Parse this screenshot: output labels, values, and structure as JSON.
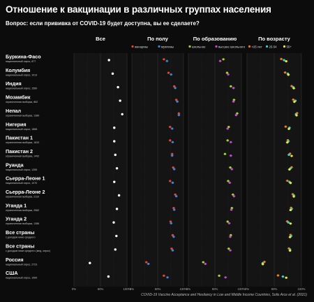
{
  "title": "Отношение к вакцинации в различных группах населения",
  "question": "Вопрос: если прививка от COVID-19 будет доступна, вы ее сделаете?",
  "source": "COVID-19 Vaccine Acceptance and Hesitancy in Low and Middle Income Countries, Solis Arce et al. (2021)",
  "colors": {
    "background": "#0c0c0c",
    "women": "#e8452c",
    "men": "#3a86d8",
    "school": "#9fd82a",
    "higher": "#c449cf",
    "age_lt25": "#f07a22",
    "age_25_54": "#3ad1cc",
    "age_55plus": "#ede93c",
    "all": "#ffffff"
  },
  "chart_data": {
    "type": "scatter",
    "panels": [
      {
        "title": "Все",
        "legend": []
      },
      {
        "title": "По полу",
        "legend": [
          {
            "label": "женщины",
            "color": "#e8452c"
          },
          {
            "label": "мужчины",
            "color": "#3a86d8"
          }
        ]
      },
      {
        "title": "По образованию",
        "legend": [
          {
            "label": "школьное",
            "color": "#9fd82a"
          },
          {
            "label": "высшее школьного",
            "color": "#c449cf"
          }
        ]
      },
      {
        "title": "По возрасту",
        "legend": [
          {
            "label": "<25 лет",
            "color": "#f07a22"
          },
          {
            "label": "25-54",
            "color": "#3ad1cc"
          },
          {
            "label": "55+",
            "color": "#ede93c"
          }
        ]
      }
    ],
    "x_axis": {
      "range": [
        0,
        100
      ],
      "ticks": [
        0,
        50,
        100
      ],
      "tick_labels": [
        "0%",
        "50%",
        "100%"
      ]
    },
    "rows": [
      {
        "name": "Буркина-Фасо",
        "subtitle": "национальный опрос, 877",
        "all": 66,
        "gender": [
          62,
          68
        ],
        "education": [
          66,
          60
        ],
        "age": [
          63,
          68,
          72
        ]
      },
      {
        "name": "Колумбия",
        "subtitle": "национальный опрос, 1013",
        "all": 73,
        "gender": [
          71,
          76
        ],
        "education": [
          73,
          75
        ],
        "age": [
          70,
          75,
          76
        ]
      },
      {
        "name": "Индия",
        "subtitle": "национальный опрос, 1580",
        "all": 83,
        "gender": [
          82,
          84
        ],
        "education": [
          80,
          85
        ],
        "age": [
          82,
          85,
          86
        ]
      },
      {
        "name": "Мозамбик",
        "subtitle": "ограниченная выборка, 862",
        "all": 87,
        "gender": [
          86,
          88
        ],
        "education": [
          86,
          85
        ],
        "age": [
          85,
          89,
          87
        ]
      },
      {
        "name": "Непал",
        "subtitle": "ограниченная выборка, 1389",
        "all": 91,
        "gender": [
          91,
          91
        ],
        "education": [
          92,
          90
        ],
        "age": [
          92,
          90,
          91
        ]
      },
      {
        "name": "Нигерия",
        "subtitle": "национальный опрос, 1868",
        "all": 76,
        "gender": [
          74,
          78
        ],
        "education": [
          76,
          74
        ],
        "age": [
          71,
          78,
          77
        ]
      },
      {
        "name": "Пакистан 1",
        "subtitle": "ограниченная выборка, 1633",
        "all": 76,
        "gender": [
          74,
          79
        ],
        "education": [
          74,
          80
        ],
        "age": [
          75,
          76,
          74
        ]
      },
      {
        "name": "Пакистан 2",
        "subtitle": "ограниченная выборка, 1492",
        "all": 78,
        "gender": [
          78,
          78
        ],
        "education": [
          69,
          80
        ],
        "age": [
          79,
          77,
          82
        ]
      },
      {
        "name": "Руанда",
        "subtitle": "национальный опрос, 1355",
        "all": 81,
        "gender": [
          80,
          82
        ],
        "education": [
          79,
          82
        ],
        "age": [
          82,
          80,
          78
        ]
      },
      {
        "name": "Сьерра-Леоне 1",
        "subtitle": "национальный опрос, 1070",
        "all": 76,
        "gender": [
          74,
          79
        ],
        "education": [
          75,
          78
        ],
        "age": [
          74,
          78,
          80
        ]
      },
      {
        "name": "Сьерра-Леоне 2",
        "subtitle": "ограниченная выборка, 2110",
        "all": 85,
        "gender": [
          84,
          86
        ],
        "education": [
          84,
          86
        ],
        "age": [
          84,
          86,
          86
        ]
      },
      {
        "name": "Уганда 1",
        "subtitle": "ограниченная выборка, 2582",
        "all": 81,
        "gender": [
          81,
          82
        ],
        "education": [
          82,
          81
        ],
        "age": [
          81,
          82,
          80
        ]
      },
      {
        "name": "Уганда 2",
        "subtitle": "ограниченная выборка, 1386",
        "all": 75,
        "gender": [
          75,
          76
        ],
        "education": [
          74,
          77
        ],
        "age": [
          74,
          76,
          80
        ]
      },
      {
        "name": "Все страны",
        "subtitle": "с доходом ниже среднего",
        "all": 80,
        "gender": [
          79,
          81
        ],
        "education": [
          80,
          79
        ],
        "age": [
          80,
          81,
          79
        ]
      },
      {
        "name": "Все страны",
        "subtitle": "с доходом ниже среднего (мед. опрос)",
        "all": 78,
        "gender": [
          77,
          79
        ],
        "education": [
          76,
          79
        ],
        "age": [
          77,
          79,
          79
        ]
      },
      {
        "name": "Россия",
        "subtitle": "национальный опрос, 2723",
        "all": 30,
        "gender": [
          28,
          32
        ],
        "education": [
          28,
          32
        ],
        "age": [
          32,
          29,
          29
        ]
      },
      {
        "name": "США",
        "subtitle": "национальный опрос, 1569",
        "all": 65,
        "gender": [
          62,
          69
        ],
        "education": [
          58,
          70
        ],
        "age": [
          57,
          66,
          72
        ]
      }
    ]
  }
}
